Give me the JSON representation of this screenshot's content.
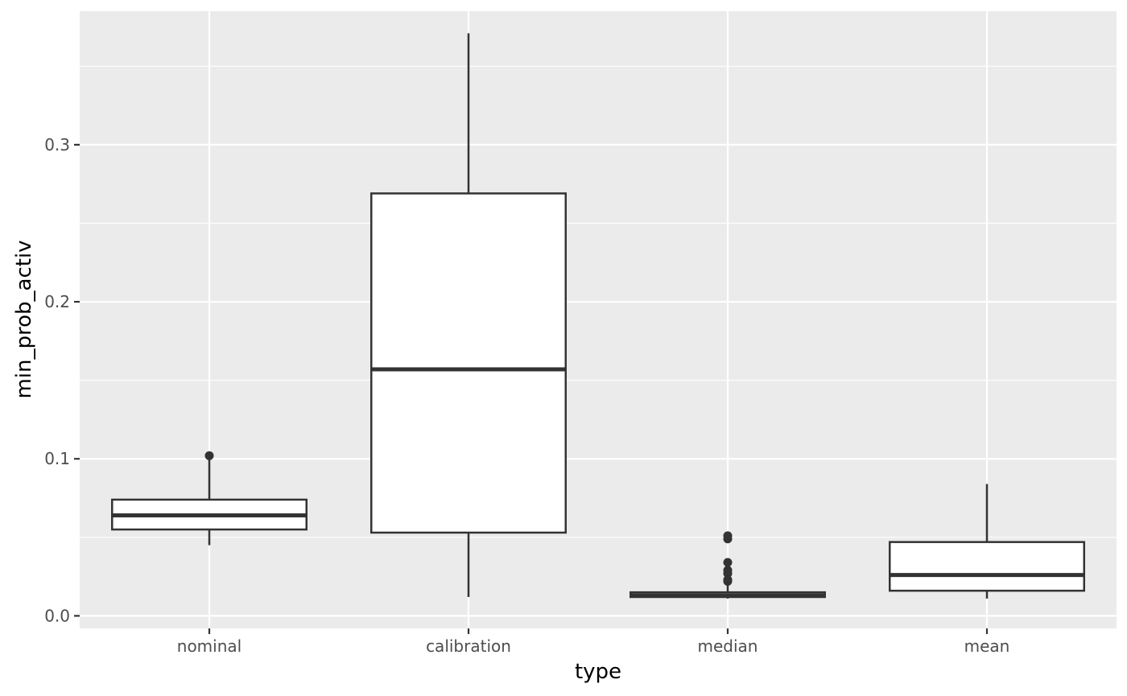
{
  "chart_data": {
    "type": "boxplot",
    "xlabel": "type",
    "ylabel": "min_prob_activ",
    "categories": [
      "nominal",
      "calibration",
      "median",
      "mean"
    ],
    "ylim": [
      -0.008,
      0.385
    ],
    "yticks": [
      0.0,
      0.1,
      0.2,
      0.3
    ],
    "ytick_labels": [
      "0.0",
      "0.1",
      "0.2",
      "0.3"
    ],
    "grid": true,
    "panel_background": "#ebebeb",
    "grid_color": "#ffffff",
    "box_fill": "#ffffff",
    "box_stroke": "#333333",
    "boxes": [
      {
        "category": "nominal",
        "whisker_low": 0.045,
        "q1": 0.055,
        "median": 0.064,
        "q3": 0.074,
        "whisker_high": 0.1,
        "outliers": [
          0.102
        ]
      },
      {
        "category": "calibration",
        "whisker_low": 0.012,
        "q1": 0.053,
        "median": 0.157,
        "q3": 0.269,
        "whisker_high": 0.371,
        "outliers": []
      },
      {
        "category": "median",
        "whisker_low": 0.011,
        "q1": 0.012,
        "median": 0.013,
        "q3": 0.015,
        "whisker_high": 0.02,
        "outliers": [
          0.022,
          0.023,
          0.027,
          0.029,
          0.034,
          0.049,
          0.051
        ]
      },
      {
        "category": "mean",
        "whisker_low": 0.011,
        "q1": 0.016,
        "median": 0.026,
        "q3": 0.047,
        "whisker_high": 0.084,
        "outliers": []
      }
    ]
  }
}
